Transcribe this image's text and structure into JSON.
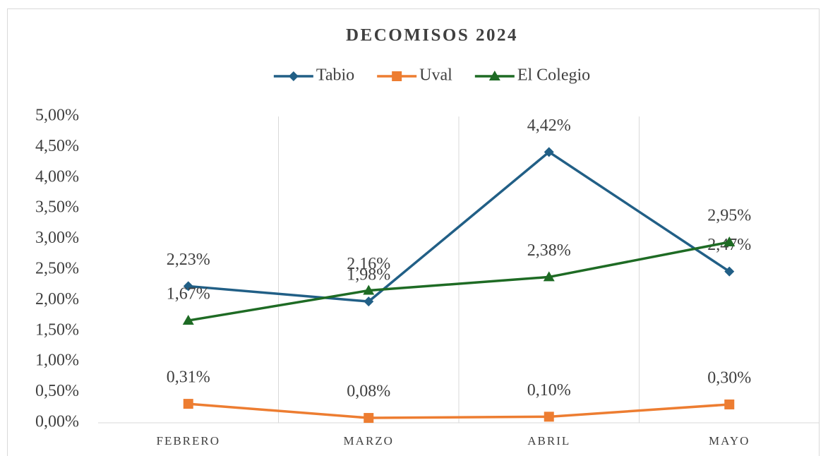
{
  "chart_data": {
    "type": "line",
    "title": "DECOMISOS 2024",
    "categories": [
      "FEBRERO",
      "MARZO",
      "ABRIL",
      "MAYO"
    ],
    "series": [
      {
        "name": "Tabio",
        "color": "#215f86",
        "marker": "diamond",
        "values": [
          2.23,
          1.98,
          4.42,
          2.47
        ],
        "value_labels": [
          "2,23%",
          "1,98%",
          "4,42%",
          "2,47%"
        ]
      },
      {
        "name": "Uval",
        "color": "#ed7d31",
        "marker": "square",
        "values": [
          0.31,
          0.08,
          0.1,
          0.3
        ],
        "value_labels": [
          "0,31%",
          "0,08%",
          "0,10%",
          "0,30%"
        ]
      },
      {
        "name": "El Colegio",
        "color": "#1e6b24",
        "marker": "triangle",
        "values": [
          1.67,
          2.16,
          2.38,
          2.95
        ],
        "value_labels": [
          "1,67%",
          "2,16%",
          "2,38%",
          "2,95%"
        ]
      }
    ],
    "ylim": [
      0,
      5
    ],
    "yticks": [
      {
        "value": 0,
        "label": "0,00%"
      },
      {
        "value": 0.5,
        "label": "0,50%"
      },
      {
        "value": 1,
        "label": "1,00%"
      },
      {
        "value": 1.5,
        "label": "1,50%"
      },
      {
        "value": 2,
        "label": "2,00%"
      },
      {
        "value": 2.5,
        "label": "2,50%"
      },
      {
        "value": 3,
        "label": "3,00%"
      },
      {
        "value": 3.5,
        "label": "3,50%"
      },
      {
        "value": 4,
        "label": "4,00%"
      },
      {
        "value": 4.5,
        "label": "4,50%"
      },
      {
        "value": 5,
        "label": "5,00%"
      }
    ],
    "grid": false,
    "xgrid": true,
    "legend": "top"
  }
}
